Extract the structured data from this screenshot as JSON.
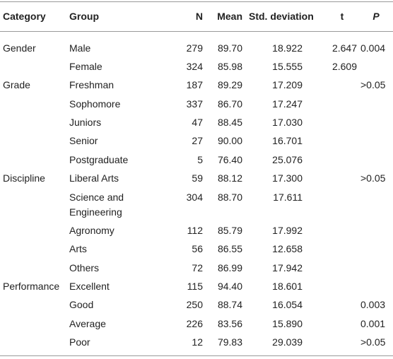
{
  "table": {
    "headers": [
      "Category",
      "Group",
      "N",
      "Mean",
      "Std. deviation",
      "t",
      "P"
    ],
    "rows": [
      [
        "Gender",
        "Male",
        "279",
        "89.70",
        "18.922",
        "2.647",
        "0.004"
      ],
      [
        null,
        "Female",
        "324",
        "85.98",
        "15.555",
        "2.609",
        null
      ],
      [
        "Grade",
        "Freshman",
        "187",
        "89.29",
        "17.209",
        null,
        ">0.05"
      ],
      [
        null,
        "Sophomore",
        "337",
        "86.70",
        "17.247",
        null,
        null
      ],
      [
        null,
        "Juniors",
        "47",
        "88.45",
        "17.030",
        null,
        null
      ],
      [
        null,
        "Senior",
        "27",
        "90.00",
        "16.701",
        null,
        null
      ],
      [
        null,
        "Postgraduate",
        "5",
        "76.40",
        "25.076",
        null,
        null
      ],
      [
        "Discipline",
        "Liberal Arts",
        "59",
        "88.12",
        "17.300",
        null,
        ">0.05"
      ],
      [
        null,
        "Science and Engineering",
        "304",
        "88.70",
        "17.611",
        null,
        null
      ],
      [
        null,
        "Agronomy",
        "112",
        "85.79",
        "17.992",
        null,
        null
      ],
      [
        null,
        "Arts",
        "56",
        "86.55",
        "12.658",
        null,
        null
      ],
      [
        null,
        "Others",
        "72",
        "86.99",
        "17.942",
        null,
        null
      ],
      [
        "Performance",
        "Excellent",
        "115",
        "94.40",
        "18.601",
        null,
        null
      ],
      [
        null,
        "Good",
        "250",
        "88.74",
        "16.054",
        null,
        "0.003"
      ],
      [
        null,
        "Average",
        "226",
        "83.56",
        "15.890",
        null,
        "0.001"
      ],
      [
        null,
        "Poor",
        "12",
        "79.83",
        "29.039",
        null,
        ">0.05"
      ]
    ]
  }
}
